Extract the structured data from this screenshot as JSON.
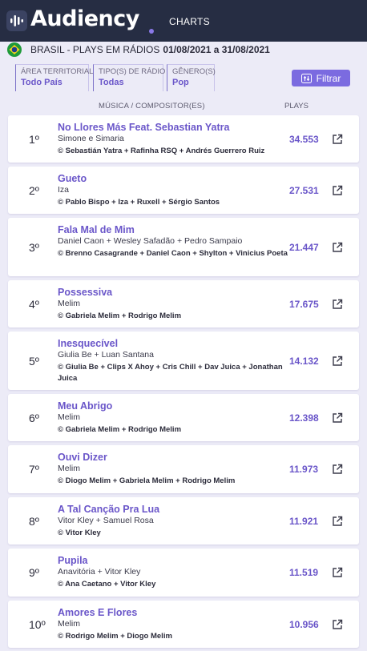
{
  "header": {
    "brand": "Audiency",
    "nav_charts": "CHARTS"
  },
  "region": {
    "label": "BRASIL - PLAYS EM RÁDIOS",
    "dates": "01/08/2021 a 31/08/2021",
    "flag_icon": "brazil-flag-icon"
  },
  "filters": {
    "territory_label": "ÁREA TERRITORIAL",
    "territory_value": "Todo País",
    "radio_type_label": "TIPO(S) DE RÁDIO",
    "radio_type_value": "Todas",
    "genre_label": "GÊNERO(S)",
    "genre_value": "Pop",
    "filter_button": "Filtrar"
  },
  "columns": {
    "music": "MÚSICA / COMPOSITOR(ES)",
    "plays": "PLAYS"
  },
  "colors": {
    "accent": "#6a56c9",
    "topbar": "#262d43",
    "background": "#ecebf7"
  },
  "chart": [
    {
      "rank": "1º",
      "song": "No Llores Más Feat. Sebastian Yatra",
      "artist": "Simone e Simaria",
      "composer": "© Sebastián Yatra + Rafinha RSQ + Andrés Guerrero Ruiz",
      "plays": "34.553"
    },
    {
      "rank": "2º",
      "song": "Gueto",
      "artist": "Iza",
      "composer": "© Pablo Bispo + Iza + Ruxell + Sérgio Santos",
      "plays": "27.531"
    },
    {
      "rank": "3º",
      "song": "Fala Mal de Mim",
      "artist": "Daniel Caon + Wesley Safadão + Pedro Sampaio",
      "composer": "© Brenno Casagrande + Daniel Caon + Shylton + Vinicius Poeta",
      "plays": "21.447"
    },
    {
      "rank": "4º",
      "song": "Possessiva",
      "artist": "Melim",
      "composer": "© Gabriela Melim + Rodrigo Melim",
      "plays": "17.675"
    },
    {
      "rank": "5º",
      "song": "Inesquecível",
      "artist": "Giulia Be + Luan Santana",
      "composer": "© Giulia Be + Clips X Ahoy + Cris Chill + Dav Juica + Jonathan Juica",
      "plays": "14.132"
    },
    {
      "rank": "6º",
      "song": "Meu Abrigo",
      "artist": "Melim",
      "composer": "© Gabriela Melim + Rodrigo Melim",
      "plays": "12.398"
    },
    {
      "rank": "7º",
      "song": "Ouvi Dizer",
      "artist": "Melim",
      "composer": "© Diogo Melim + Gabriela Melim + Rodrigo Melim",
      "plays": "11.973"
    },
    {
      "rank": "8º",
      "song": "A Tal Canção Pra Lua",
      "artist": "Vitor Kley + Samuel Rosa",
      "composer": "© Vitor Kley",
      "plays": "11.921"
    },
    {
      "rank": "9º",
      "song": "Pupila",
      "artist": "Anavitória + Vitor Kley",
      "composer": "© Ana Caetano + Vitor Kley",
      "plays": "11.519"
    },
    {
      "rank": "10º",
      "song": "Amores E Flores",
      "artist": "Melim",
      "composer": "© Rodrigo Melim + Diogo Melim",
      "plays": "10.956"
    }
  ]
}
